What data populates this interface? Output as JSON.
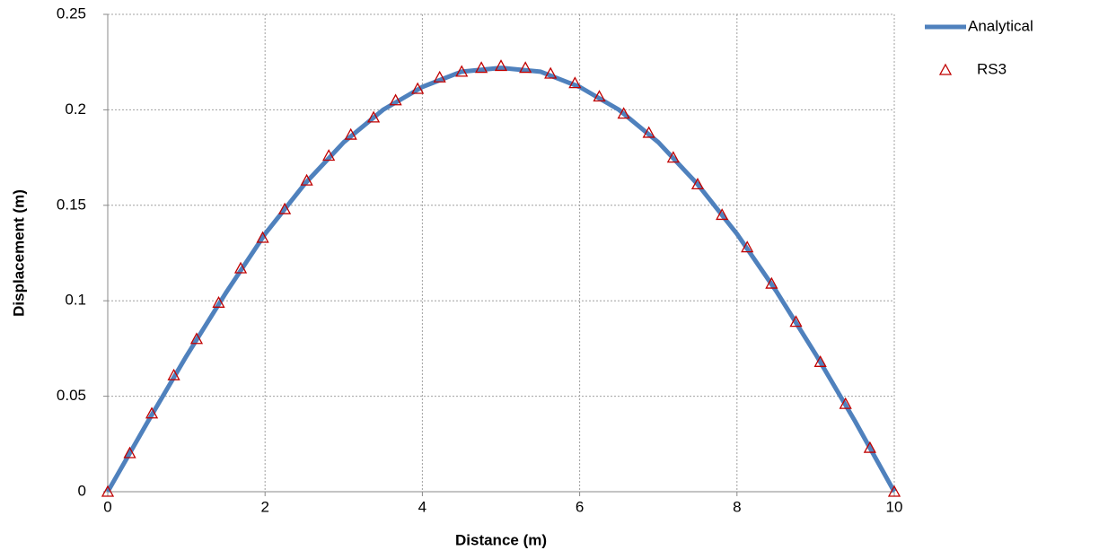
{
  "chart_data": {
    "type": "line",
    "x_label": "Distance (m)",
    "y_label": "Displacement (m)",
    "xlim": [
      0,
      10
    ],
    "xticks": [
      0,
      2,
      4,
      6,
      8,
      10
    ],
    "ylim": [
      0,
      0.25
    ],
    "yticks": [
      0,
      0.05,
      0.1,
      0.15,
      0.2,
      0.25
    ],
    "grid": true,
    "legend": "right",
    "series": [
      {
        "name": "Analytical",
        "color": "#4f81bd",
        "style": "line",
        "x": [
          0,
          0.5,
          1,
          1.5,
          2,
          2.5,
          3,
          3.5,
          4,
          4.5,
          5,
          5.5,
          6,
          6.5,
          7,
          7.5,
          8,
          8.5,
          9,
          9.5,
          10
        ],
        "values": [
          0,
          0.036,
          0.071,
          0.104,
          0.135,
          0.161,
          0.183,
          0.2,
          0.212,
          0.22,
          0.222,
          0.22,
          0.212,
          0.2,
          0.183,
          0.161,
          0.135,
          0.105,
          0.072,
          0.037,
          0
        ]
      },
      {
        "name": "RS3",
        "color": "#c00000",
        "style": "marker",
        "x": [
          0,
          0.28,
          0.56,
          0.84,
          1.13,
          1.41,
          1.69,
          1.97,
          2.25,
          2.53,
          2.81,
          3.09,
          3.38,
          3.66,
          3.94,
          4.22,
          4.5,
          4.75,
          5.0,
          5.31,
          5.63,
          5.94,
          6.25,
          6.56,
          6.88,
          7.19,
          7.5,
          7.81,
          8.13,
          8.44,
          8.75,
          9.06,
          9.38,
          9.69,
          10
        ],
        "values": [
          0,
          0.0202,
          0.041,
          0.061,
          0.08,
          0.099,
          0.117,
          0.133,
          0.148,
          0.163,
          0.176,
          0.187,
          0.196,
          0.205,
          0.211,
          0.217,
          0.22,
          0.222,
          0.223,
          0.222,
          0.219,
          0.214,
          0.207,
          0.198,
          0.188,
          0.175,
          0.161,
          0.145,
          0.128,
          0.109,
          0.089,
          0.068,
          0.046,
          0.023,
          0
        ]
      }
    ]
  }
}
